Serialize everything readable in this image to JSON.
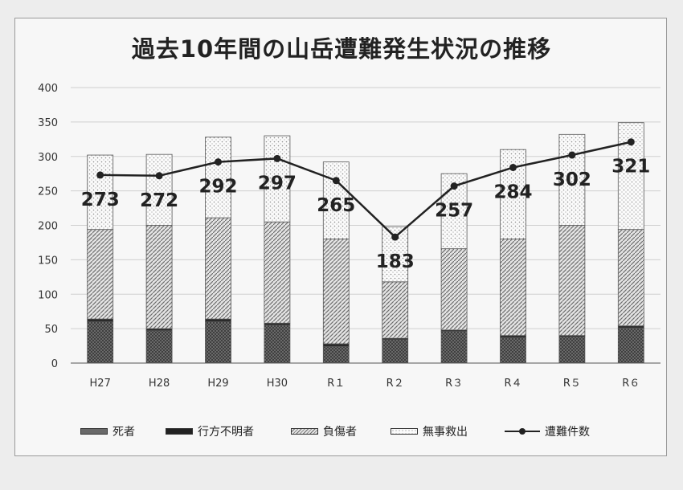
{
  "chart_data": {
    "type": "bar",
    "title": "過去10年間の山岳遭難発生状況の推移",
    "categories": [
      "H27",
      "H28",
      "H29",
      "H30",
      "R１",
      "R２",
      "R３",
      "R４",
      "R５",
      "R６"
    ],
    "ylim": [
      0,
      400
    ],
    "yticks": [
      0,
      50,
      100,
      150,
      200,
      250,
      300,
      350,
      400
    ],
    "grid": true,
    "legend_position": "bottom",
    "stacked": true,
    "series": [
      {
        "name": "死者",
        "values": [
          60,
          47,
          60,
          55,
          24,
          34,
          46,
          37,
          38,
          51
        ]
      },
      {
        "name": "行方不明者",
        "values": [
          4,
          3,
          4,
          3,
          4,
          2,
          2,
          3,
          2,
          3
        ]
      },
      {
        "name": "負傷者",
        "values": [
          130,
          150,
          147,
          147,
          152,
          82,
          118,
          140,
          160,
          140
        ]
      },
      {
        "name": "無事救出",
        "values": [
          108,
          103,
          117,
          125,
          112,
          80,
          109,
          130,
          132,
          155
        ]
      }
    ],
    "line_series": {
      "name": "遭難件数",
      "values": [
        273,
        272,
        292,
        297,
        265,
        183,
        257,
        284,
        302,
        321
      ]
    }
  },
  "colors": {
    "frame_border": "#9a9a9a",
    "grid": "#cfcfcf",
    "line": "#222222"
  },
  "series_patterns": [
    "crosshatch-dark",
    "solid-dark",
    "diagonal-hatch",
    "dotted"
  ]
}
